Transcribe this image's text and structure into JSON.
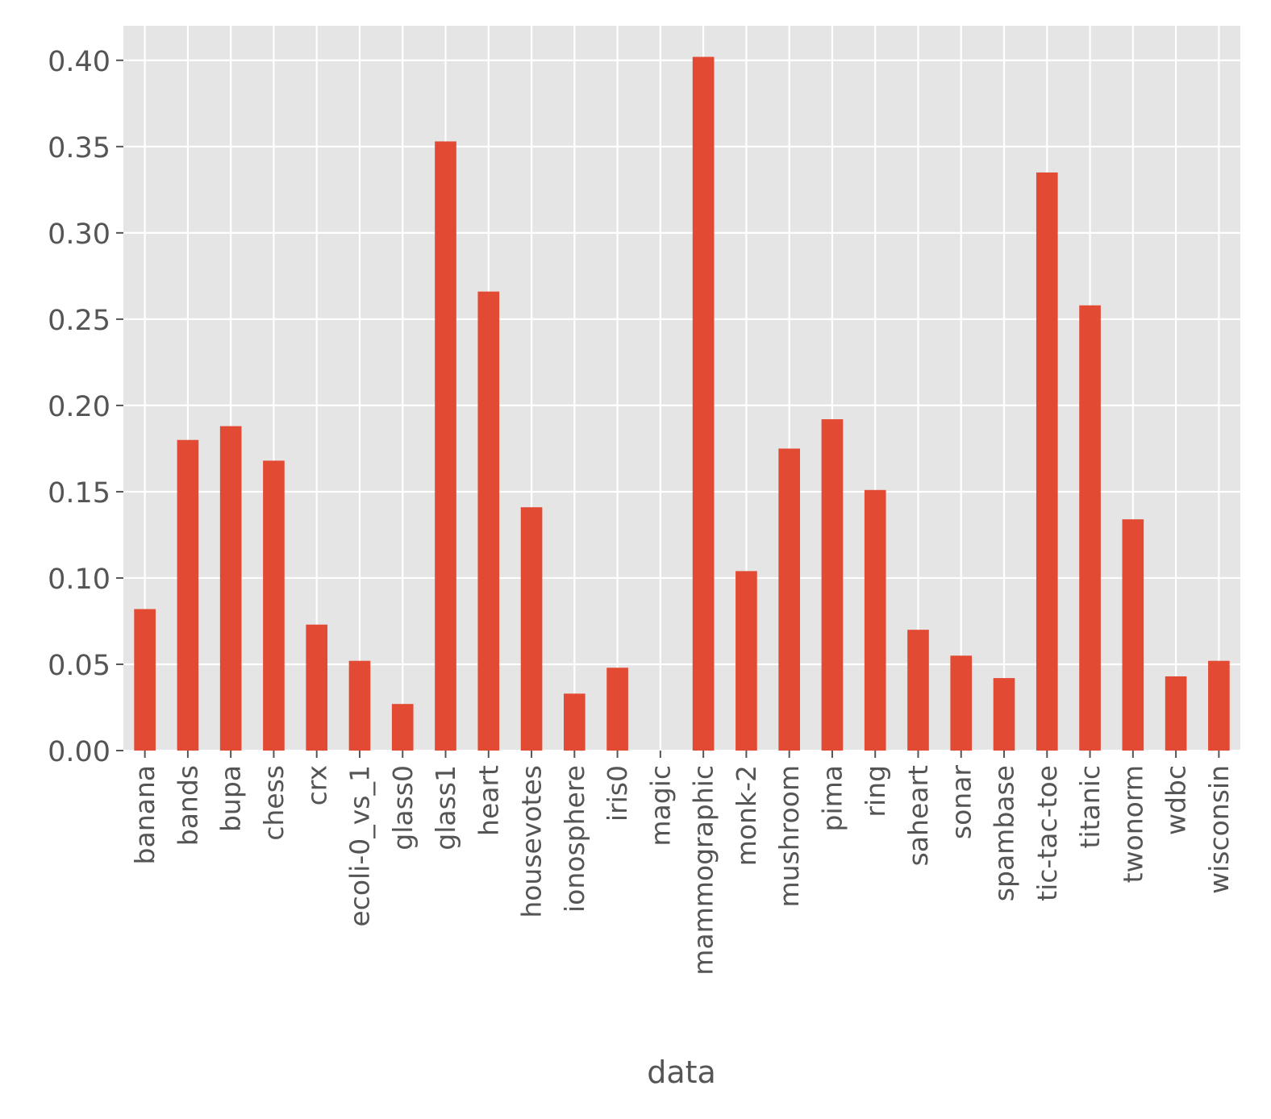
{
  "chart_data": {
    "type": "bar",
    "title": "",
    "xlabel": "data",
    "ylabel": "",
    "ylim": [
      0,
      0.42
    ],
    "yticks": [
      "0.00",
      "0.05",
      "0.10",
      "0.15",
      "0.20",
      "0.25",
      "0.30",
      "0.35",
      "0.40"
    ],
    "grid": true,
    "categories": [
      "banana",
      "bands",
      "bupa",
      "chess",
      "crx",
      "ecoli-0_vs_1",
      "glass0",
      "glass1",
      "heart",
      "housevotes",
      "ionosphere",
      "iris0",
      "magic",
      "mammographic",
      "monk-2",
      "mushroom",
      "pima",
      "ring",
      "saheart",
      "sonar",
      "spambase",
      "tic-tac-toe",
      "titanic",
      "twonorm",
      "wdbc",
      "wisconsin"
    ],
    "values": [
      0.082,
      0.18,
      0.188,
      0.168,
      0.073,
      0.052,
      0.027,
      0.353,
      0.266,
      0.141,
      0.033,
      0.048,
      0.0,
      0.402,
      0.104,
      0.175,
      0.192,
      0.151,
      0.07,
      0.055,
      0.042,
      0.335,
      0.258,
      0.134,
      0.043,
      0.052
    ],
    "colors": {
      "bar": "#E24A33",
      "plot_background": "#E5E5E5",
      "grid": "#FFFFFF",
      "text": "#555555"
    }
  }
}
